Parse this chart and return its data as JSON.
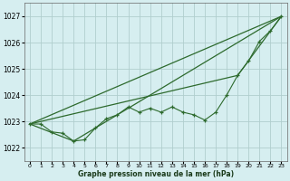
{
  "xlabel": "Graphe pression niveau de la mer (hPa)",
  "ylim": [
    1021.5,
    1027.5
  ],
  "xlim": [
    -0.5,
    23.5
  ],
  "yticks": [
    1022,
    1023,
    1024,
    1025,
    1026,
    1027
  ],
  "xticks": [
    0,
    1,
    2,
    3,
    4,
    5,
    6,
    7,
    8,
    9,
    10,
    11,
    12,
    13,
    14,
    15,
    16,
    17,
    18,
    19,
    20,
    21,
    22,
    23
  ],
  "bg_color": "#d6eef0",
  "grid_color": "#b0cece",
  "line_color": "#2d6a2d",
  "main_series": {
    "x": [
      0,
      1,
      2,
      3,
      4,
      5,
      6,
      7,
      8,
      9,
      10,
      11,
      12,
      13,
      14,
      15,
      16,
      17,
      18,
      19,
      20,
      21,
      22,
      23
    ],
    "y": [
      1022.9,
      1022.9,
      1022.6,
      1022.55,
      1022.25,
      1022.3,
      1022.75,
      1023.1,
      1023.25,
      1023.55,
      1023.35,
      1023.5,
      1023.35,
      1023.55,
      1023.35,
      1023.25,
      1023.05,
      1023.35,
      1024.0,
      1024.75,
      1025.3,
      1026.05,
      1026.45,
      1027.0
    ]
  },
  "straight_lines": [
    {
      "x": [
        0,
        23
      ],
      "y": [
        1022.9,
        1027.0
      ]
    },
    {
      "x": [
        0,
        4,
        23
      ],
      "y": [
        1022.9,
        1022.25,
        1027.0
      ]
    },
    {
      "x": [
        0,
        19,
        23
      ],
      "y": [
        1022.9,
        1024.75,
        1027.0
      ]
    }
  ]
}
